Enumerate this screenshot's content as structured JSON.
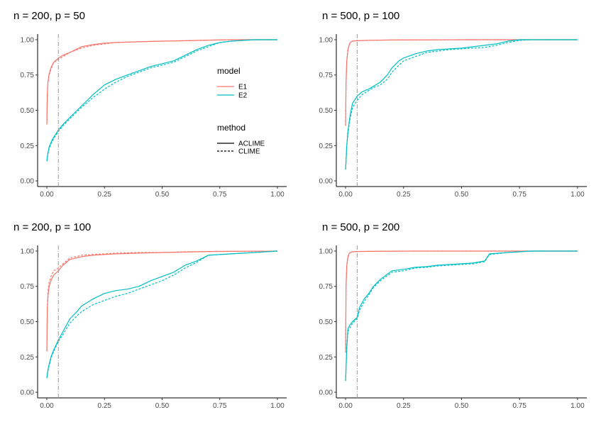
{
  "legend": {
    "model_title": "model",
    "model_entries": [
      {
        "label": "E1",
        "color": "#F8766D"
      },
      {
        "label": "E2",
        "color": "#00BFC4"
      }
    ],
    "method_title": "method",
    "method_entries": [
      {
        "label": "ACLIME",
        "dash": "solid"
      },
      {
        "label": "CLIME",
        "dash": "dashed"
      }
    ],
    "placement": "inside top-left panel, right side"
  },
  "chart_data": [
    {
      "type": "line",
      "title": "n = 200, p = 50",
      "xlim": [
        0,
        1
      ],
      "ylim": [
        0,
        1
      ],
      "xticks": [
        "0.00",
        "0.25",
        "0.50",
        "0.75",
        "1.00"
      ],
      "yticks": [
        "0.00",
        "0.25",
        "0.50",
        "0.75",
        "1.00"
      ],
      "vline": 0.05,
      "series": [
        {
          "name": "E1",
          "method": "ACLIME",
          "x": [
            0,
            0.002,
            0.005,
            0.01,
            0.02,
            0.03,
            0.05,
            0.07,
            0.1,
            0.15,
            0.2,
            0.25,
            0.3,
            0.4,
            0.5,
            0.6,
            0.7,
            0.8,
            1.0
          ],
          "y": [
            0.4,
            0.62,
            0.7,
            0.76,
            0.81,
            0.84,
            0.87,
            0.89,
            0.91,
            0.95,
            0.965,
            0.975,
            0.98,
            0.985,
            0.99,
            0.993,
            0.997,
            1.0,
            1.0
          ]
        },
        {
          "name": "E1",
          "method": "CLIME",
          "x": [
            0,
            0.002,
            0.005,
            0.01,
            0.02,
            0.03,
            0.05,
            0.07,
            0.1,
            0.15,
            0.2,
            0.25,
            0.3,
            0.4,
            0.5,
            0.6,
            0.7,
            0.8,
            1.0
          ],
          "y": [
            0.4,
            0.6,
            0.69,
            0.75,
            0.8,
            0.84,
            0.86,
            0.88,
            0.91,
            0.94,
            0.96,
            0.97,
            0.98,
            0.985,
            0.99,
            0.993,
            0.997,
            1.0,
            1.0
          ]
        },
        {
          "name": "E2",
          "method": "ACLIME",
          "x": [
            0,
            0.005,
            0.01,
            0.02,
            0.03,
            0.05,
            0.07,
            0.1,
            0.15,
            0.2,
            0.25,
            0.3,
            0.35,
            0.4,
            0.45,
            0.5,
            0.55,
            0.6,
            0.65,
            0.7,
            0.75,
            0.8,
            0.9,
            1.0
          ],
          "y": [
            0.14,
            0.2,
            0.24,
            0.28,
            0.31,
            0.36,
            0.4,
            0.45,
            0.53,
            0.61,
            0.68,
            0.72,
            0.75,
            0.78,
            0.81,
            0.83,
            0.85,
            0.89,
            0.93,
            0.96,
            0.98,
            0.99,
            1.0,
            1.0
          ]
        },
        {
          "name": "E2",
          "method": "CLIME",
          "x": [
            0,
            0.005,
            0.01,
            0.02,
            0.03,
            0.05,
            0.07,
            0.1,
            0.15,
            0.2,
            0.25,
            0.3,
            0.35,
            0.4,
            0.45,
            0.5,
            0.55,
            0.6,
            0.65,
            0.7,
            0.75,
            0.8,
            0.9,
            1.0
          ],
          "y": [
            0.14,
            0.19,
            0.23,
            0.27,
            0.3,
            0.35,
            0.39,
            0.44,
            0.52,
            0.59,
            0.65,
            0.7,
            0.74,
            0.77,
            0.8,
            0.82,
            0.84,
            0.88,
            0.92,
            0.95,
            0.98,
            0.99,
            1.0,
            1.0
          ]
        }
      ]
    },
    {
      "type": "line",
      "title": "n = 500, p = 100",
      "xlim": [
        0,
        1
      ],
      "ylim": [
        0,
        1
      ],
      "xticks": [
        "0.00",
        "0.25",
        "0.50",
        "0.75",
        "1.00"
      ],
      "yticks": [
        "0.00",
        "0.25",
        "0.50",
        "0.75",
        "1.00"
      ],
      "vline": 0.05,
      "series": [
        {
          "name": "E1",
          "method": "ACLIME",
          "x": [
            0,
            0.002,
            0.005,
            0.01,
            0.015,
            0.02,
            0.03,
            0.05,
            0.1,
            0.2,
            0.5,
            1.0
          ],
          "y": [
            0.39,
            0.7,
            0.85,
            0.93,
            0.96,
            0.98,
            0.99,
            0.993,
            0.996,
            0.998,
            1.0,
            1.0
          ]
        },
        {
          "name": "E1",
          "method": "CLIME",
          "x": [
            0,
            0.002,
            0.005,
            0.01,
            0.015,
            0.02,
            0.03,
            0.05,
            0.1,
            0.2,
            0.5,
            1.0
          ],
          "y": [
            0.39,
            0.68,
            0.84,
            0.92,
            0.96,
            0.98,
            0.99,
            0.993,
            0.996,
            0.998,
            1.0,
            1.0
          ]
        },
        {
          "name": "E2",
          "method": "ACLIME",
          "x": [
            0,
            0.005,
            0.01,
            0.02,
            0.03,
            0.05,
            0.07,
            0.1,
            0.12,
            0.15,
            0.18,
            0.2,
            0.23,
            0.25,
            0.3,
            0.35,
            0.4,
            0.45,
            0.5,
            0.55,
            0.6,
            0.65,
            0.7,
            0.75,
            0.8,
            1.0
          ],
          "y": [
            0.08,
            0.25,
            0.35,
            0.47,
            0.55,
            0.6,
            0.63,
            0.65,
            0.67,
            0.7,
            0.75,
            0.8,
            0.85,
            0.87,
            0.9,
            0.92,
            0.93,
            0.935,
            0.94,
            0.95,
            0.96,
            0.97,
            0.99,
            1.0,
            1.0,
            1.0
          ]
        },
        {
          "name": "E2",
          "method": "CLIME",
          "x": [
            0,
            0.005,
            0.01,
            0.02,
            0.03,
            0.05,
            0.07,
            0.1,
            0.12,
            0.15,
            0.18,
            0.2,
            0.23,
            0.25,
            0.3,
            0.35,
            0.4,
            0.45,
            0.5,
            0.55,
            0.6,
            0.65,
            0.7,
            0.75,
            0.8,
            1.0
          ],
          "y": [
            0.08,
            0.24,
            0.33,
            0.45,
            0.52,
            0.57,
            0.61,
            0.64,
            0.66,
            0.68,
            0.72,
            0.77,
            0.82,
            0.85,
            0.88,
            0.91,
            0.92,
            0.93,
            0.935,
            0.94,
            0.945,
            0.96,
            0.98,
            0.995,
            1.0,
            1.0
          ]
        }
      ]
    },
    {
      "type": "line",
      "title": "n = 200, p = 100",
      "xlim": [
        0,
        1
      ],
      "ylim": [
        0,
        1
      ],
      "xticks": [
        "0.00",
        "0.25",
        "0.50",
        "0.75",
        "1.00"
      ],
      "yticks": [
        "0.00",
        "0.25",
        "0.50",
        "0.75",
        "1.00"
      ],
      "vline": 0.05,
      "series": [
        {
          "name": "E1",
          "method": "ACLIME",
          "x": [
            0,
            0.002,
            0.005,
            0.01,
            0.02,
            0.03,
            0.05,
            0.07,
            0.1,
            0.15,
            0.2,
            0.3,
            0.4,
            0.5,
            0.6,
            0.7,
            0.8,
            1.0
          ],
          "y": [
            0.29,
            0.58,
            0.68,
            0.75,
            0.8,
            0.83,
            0.86,
            0.9,
            0.94,
            0.96,
            0.97,
            0.98,
            0.985,
            0.99,
            0.993,
            0.997,
            0.998,
            1.0
          ]
        },
        {
          "name": "E1",
          "method": "CLIME",
          "x": [
            0,
            0.002,
            0.005,
            0.01,
            0.02,
            0.03,
            0.05,
            0.07,
            0.1,
            0.15,
            0.2,
            0.3,
            0.4,
            0.5,
            0.6,
            0.7,
            0.8,
            1.0
          ],
          "y": [
            0.29,
            0.6,
            0.71,
            0.78,
            0.83,
            0.86,
            0.88,
            0.91,
            0.95,
            0.97,
            0.975,
            0.985,
            0.99,
            0.99,
            0.995,
            0.997,
            0.998,
            1.0
          ]
        },
        {
          "name": "E2",
          "method": "ACLIME",
          "x": [
            0,
            0.005,
            0.01,
            0.02,
            0.03,
            0.05,
            0.07,
            0.1,
            0.13,
            0.15,
            0.2,
            0.25,
            0.3,
            0.35,
            0.4,
            0.45,
            0.5,
            0.55,
            0.6,
            0.65,
            0.7,
            0.8,
            0.9,
            1.0
          ],
          "y": [
            0.1,
            0.16,
            0.2,
            0.26,
            0.3,
            0.37,
            0.43,
            0.52,
            0.57,
            0.61,
            0.66,
            0.7,
            0.72,
            0.73,
            0.75,
            0.79,
            0.82,
            0.85,
            0.9,
            0.93,
            0.97,
            0.98,
            0.99,
            1.0
          ]
        },
        {
          "name": "E2",
          "method": "CLIME",
          "x": [
            0,
            0.005,
            0.01,
            0.02,
            0.03,
            0.05,
            0.07,
            0.1,
            0.13,
            0.15,
            0.2,
            0.25,
            0.3,
            0.35,
            0.4,
            0.45,
            0.5,
            0.55,
            0.6,
            0.65,
            0.7,
            0.8,
            0.9,
            1.0
          ],
          "y": [
            0.1,
            0.15,
            0.19,
            0.25,
            0.29,
            0.36,
            0.41,
            0.49,
            0.54,
            0.57,
            0.62,
            0.65,
            0.68,
            0.7,
            0.73,
            0.76,
            0.79,
            0.83,
            0.88,
            0.92,
            0.97,
            0.98,
            0.99,
            1.0
          ]
        }
      ]
    },
    {
      "type": "line",
      "title": "n = 500, p = 200",
      "xlim": [
        0,
        1
      ],
      "ylim": [
        0,
        1
      ],
      "xticks": [
        "0.00",
        "0.25",
        "0.50",
        "0.75",
        "1.00"
      ],
      "yticks": [
        "0.00",
        "0.25",
        "0.50",
        "0.75",
        "1.00"
      ],
      "vline": 0.05,
      "series": [
        {
          "name": "E1",
          "method": "ACLIME",
          "x": [
            0,
            0.002,
            0.005,
            0.01,
            0.015,
            0.02,
            0.03,
            0.05,
            0.1,
            0.3,
            1.0
          ],
          "y": [
            0.28,
            0.75,
            0.9,
            0.96,
            0.98,
            0.99,
            0.995,
            0.997,
            0.998,
            1.0,
            1.0
          ]
        },
        {
          "name": "E1",
          "method": "CLIME",
          "x": [
            0,
            0.002,
            0.005,
            0.01,
            0.015,
            0.02,
            0.03,
            0.05,
            0.1,
            0.3,
            1.0
          ],
          "y": [
            0.28,
            0.73,
            0.89,
            0.95,
            0.98,
            0.99,
            0.995,
            0.997,
            0.998,
            1.0,
            1.0
          ]
        },
        {
          "name": "E2",
          "method": "ACLIME",
          "x": [
            0,
            0.005,
            0.01,
            0.02,
            0.03,
            0.05,
            0.06,
            0.08,
            0.1,
            0.12,
            0.15,
            0.2,
            0.25,
            0.3,
            0.35,
            0.4,
            0.45,
            0.5,
            0.55,
            0.6,
            0.62,
            0.7,
            0.8,
            1.0
          ],
          "y": [
            0.08,
            0.32,
            0.45,
            0.48,
            0.5,
            0.53,
            0.6,
            0.66,
            0.7,
            0.75,
            0.8,
            0.86,
            0.87,
            0.885,
            0.89,
            0.9,
            0.905,
            0.91,
            0.915,
            0.93,
            0.98,
            0.99,
            1.0,
            1.0
          ]
        },
        {
          "name": "E2",
          "method": "CLIME",
          "x": [
            0,
            0.005,
            0.01,
            0.02,
            0.03,
            0.05,
            0.06,
            0.08,
            0.1,
            0.12,
            0.15,
            0.2,
            0.25,
            0.3,
            0.35,
            0.4,
            0.45,
            0.5,
            0.55,
            0.6,
            0.62,
            0.7,
            0.8,
            1.0
          ],
          "y": [
            0.08,
            0.3,
            0.43,
            0.46,
            0.49,
            0.52,
            0.58,
            0.64,
            0.69,
            0.74,
            0.79,
            0.85,
            0.86,
            0.88,
            0.885,
            0.895,
            0.9,
            0.905,
            0.91,
            0.925,
            0.975,
            0.99,
            1.0,
            1.0
          ]
        }
      ]
    }
  ]
}
